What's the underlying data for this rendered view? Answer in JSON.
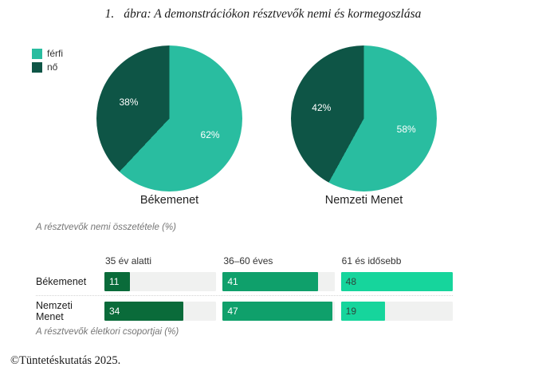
{
  "title": {
    "number": "1.",
    "text": "ábra: A demonstrációkon résztvevők nemi és kormegoszlása"
  },
  "legend": {
    "items": [
      {
        "label": "férfi",
        "color": "#29bda0"
      },
      {
        "label": "nő",
        "color": "#0e5546"
      }
    ]
  },
  "chart_data": [
    {
      "type": "pie",
      "title": "Békemenet",
      "labels": [
        "férfi",
        "nő"
      ],
      "values": [
        62,
        38
      ],
      "value_labels": [
        "62%",
        "38%"
      ],
      "colors": [
        "#29bda0",
        "#0e5546"
      ],
      "start_angle_deg": 0,
      "direction": "clockwise"
    },
    {
      "type": "pie",
      "title": "Nemzeti Menet",
      "labels": [
        "férfi",
        "nő"
      ],
      "values": [
        58,
        42
      ],
      "value_labels": [
        "58%",
        "42%"
      ],
      "colors": [
        "#29bda0",
        "#0e5546"
      ],
      "start_angle_deg": 0,
      "direction": "clockwise"
    },
    {
      "type": "bar",
      "orientation": "horizontal",
      "categories": [
        "35 év alatti",
        "36–60 éves",
        "61 és idősebb"
      ],
      "rows": [
        {
          "label": "Békemenet",
          "values": [
            11,
            41,
            48
          ]
        },
        {
          "label": "Nemzeti Menet",
          "values": [
            34,
            47,
            19
          ]
        }
      ],
      "scale_max": 48,
      "colors": [
        "#0a6b3a",
        "#0fa06b",
        "#16d59c"
      ],
      "value_text_colors": [
        "#ffffff",
        "#ffffff",
        "#2e463d"
      ],
      "track_color": "#f0f1f0"
    }
  ],
  "captions": {
    "gender": "A résztvevők nemi összetétele (%)",
    "age": "A résztvevők életkori csoportjai (%)"
  },
  "footer": "©Tüntetéskutatás 2025."
}
